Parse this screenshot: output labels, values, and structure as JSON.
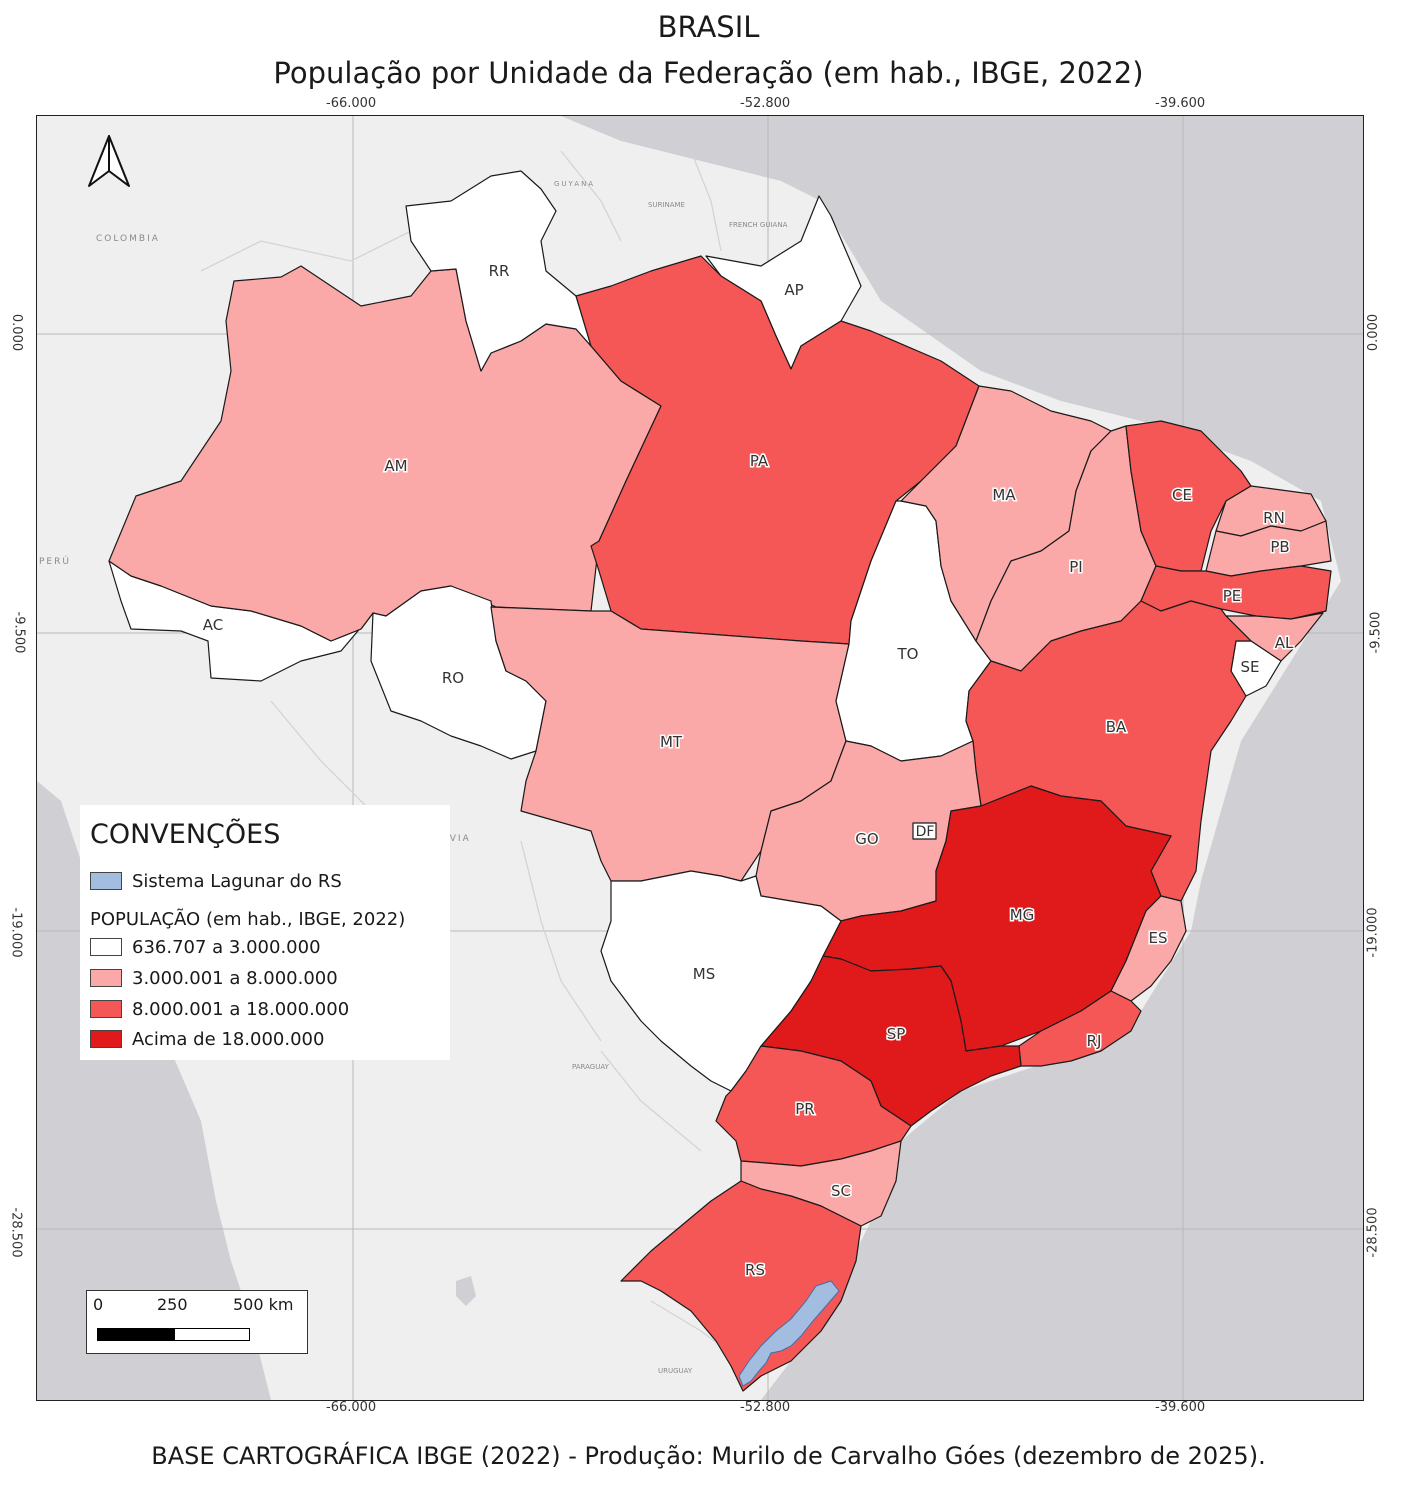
{
  "title": "BRASIL",
  "subtitle": "População por Unidade da Federação (em hab., IBGE, 2022)",
  "credits": "BASE CARTOGRÁFICA IBGE (2022) - Produção: Murilo de Carvalho Góes (dezembro de 2025).",
  "graticule": {
    "lon_labels": [
      "-66.000",
      "-52.800",
      "-39.600"
    ],
    "lat_labels": [
      "0.000",
      "-9.500",
      "-19.000",
      "-28.500"
    ]
  },
  "countries": [
    "COLOMBIA",
    "GUYANA",
    "SURINAME",
    "FRENCH GUIANA",
    "PERÚ",
    "BOLIVIA",
    "PARAGUAY",
    "URUGUAY"
  ],
  "colors": {
    "class1": "#ffffff",
    "class2": "#fba8a8",
    "class3": "#f55757",
    "class4": "#e0191b",
    "lagoon": "#a3bde0",
    "ocean": "#d0d0d4",
    "land": "#efefef"
  },
  "states": [
    {
      "uf": "AC",
      "class": 1
    },
    {
      "uf": "AM",
      "class": 2
    },
    {
      "uf": "RR",
      "class": 1
    },
    {
      "uf": "AP",
      "class": 1
    },
    {
      "uf": "PA",
      "class": 3
    },
    {
      "uf": "RO",
      "class": 1
    },
    {
      "uf": "MT",
      "class": 2
    },
    {
      "uf": "TO",
      "class": 1
    },
    {
      "uf": "MA",
      "class": 2
    },
    {
      "uf": "PI",
      "class": 2
    },
    {
      "uf": "CE",
      "class": 3
    },
    {
      "uf": "RN",
      "class": 2
    },
    {
      "uf": "PB",
      "class": 2
    },
    {
      "uf": "PE",
      "class": 3
    },
    {
      "uf": "AL",
      "class": 2
    },
    {
      "uf": "SE",
      "class": 1
    },
    {
      "uf": "BA",
      "class": 3
    },
    {
      "uf": "GO",
      "class": 2
    },
    {
      "uf": "DF",
      "class": 1
    },
    {
      "uf": "MG",
      "class": 4
    },
    {
      "uf": "ES",
      "class": 2
    },
    {
      "uf": "RJ",
      "class": 3
    },
    {
      "uf": "SP",
      "class": 4
    },
    {
      "uf": "MS",
      "class": 1
    },
    {
      "uf": "PR",
      "class": 3
    },
    {
      "uf": "SC",
      "class": 2
    },
    {
      "uf": "RS",
      "class": 3
    }
  ],
  "legend": {
    "title": "CONVENÇÕES",
    "lagoon": "Sistema Lagunar do RS",
    "subtitle": "POPULAÇÃO (em hab., IBGE, 2022)",
    "classes": [
      "636.707 a 3.000.000",
      "3.000.001 a 8.000.000",
      "8.000.001 a 18.000.000",
      "Acima de 18.000.000"
    ]
  },
  "scalebar": {
    "labels": [
      "0",
      "250",
      "500 km"
    ]
  }
}
